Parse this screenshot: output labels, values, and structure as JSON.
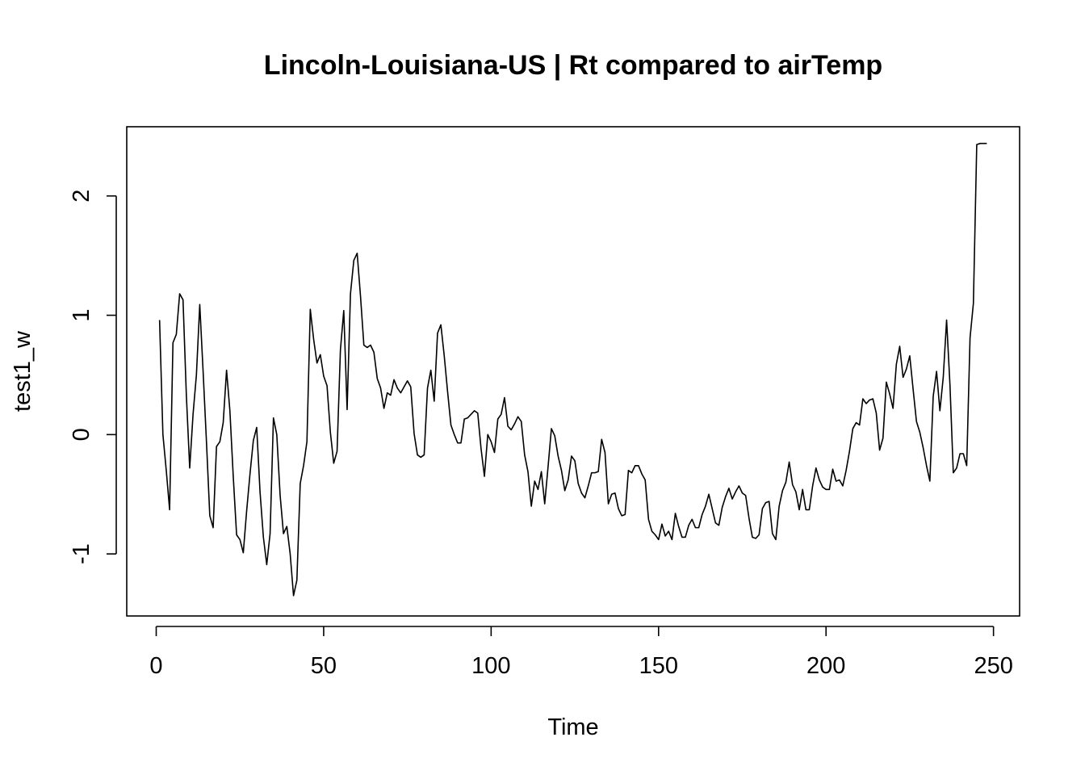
{
  "chart_data": {
    "type": "line",
    "title": "Lincoln-Louisiana-US | Rt compared to airTemp",
    "xlabel": "Time",
    "ylabel": "test1_w",
    "xlim": [
      -8.8,
      257.8
    ],
    "ylim": [
      -1.52,
      2.58
    ],
    "xticks": [
      0,
      50,
      100,
      150,
      200,
      250
    ],
    "xtick_labels": [
      "0",
      "50",
      "100",
      "150",
      "200",
      "250"
    ],
    "yticks": [
      -1,
      0,
      1,
      2
    ],
    "ytick_labels": [
      "-1",
      "0",
      "1",
      "2"
    ],
    "grid": false,
    "color": "#000000",
    "x": [
      1,
      2,
      3,
      4,
      5,
      6,
      7,
      8,
      9,
      10,
      11,
      12,
      13,
      14,
      15,
      16,
      17,
      18,
      19,
      20,
      21,
      22,
      23,
      24,
      25,
      26,
      27,
      28,
      29,
      30,
      31,
      32,
      33,
      34,
      35,
      36,
      37,
      38,
      39,
      40,
      41,
      42,
      43,
      44,
      45,
      46,
      47,
      48,
      49,
      50,
      51,
      52,
      53,
      54,
      55,
      56,
      57,
      58,
      59,
      60,
      61,
      62,
      63,
      64,
      65,
      66,
      67,
      68,
      69,
      70,
      71,
      72,
      73,
      74,
      75,
      76,
      77,
      78,
      79,
      80,
      81,
      82,
      83,
      84,
      85,
      86,
      87,
      88,
      89,
      90,
      91,
      92,
      93,
      94,
      95,
      96,
      97,
      98,
      99,
      100,
      101,
      102,
      103,
      104,
      105,
      106,
      107,
      108,
      109,
      110,
      111,
      112,
      113,
      114,
      115,
      116,
      117,
      118,
      119,
      120,
      121,
      122,
      123,
      124,
      125,
      126,
      127,
      128,
      129,
      130,
      131,
      132,
      133,
      134,
      135,
      136,
      137,
      138,
      139,
      140,
      141,
      142,
      143,
      144,
      145,
      146,
      147,
      148,
      149,
      150,
      151,
      152,
      153,
      154,
      155,
      156,
      157,
      158,
      159,
      160,
      161,
      162,
      163,
      164,
      165,
      166,
      167,
      168,
      169,
      170,
      171,
      172,
      173,
      174,
      175,
      176,
      177,
      178,
      179,
      180,
      181,
      182,
      183,
      184,
      185,
      186,
      187,
      188,
      189,
      190,
      191,
      192,
      193,
      194,
      195,
      196,
      197,
      198,
      199,
      200,
      201,
      202,
      203,
      204,
      205,
      206,
      207,
      208,
      209,
      210,
      211,
      212,
      213,
      214,
      215,
      216,
      217,
      218,
      219,
      220,
      221,
      222,
      223,
      224,
      225,
      226,
      227,
      228,
      229,
      230,
      231,
      232,
      233,
      234,
      235,
      236,
      237,
      238,
      239,
      240,
      241,
      242,
      243,
      244,
      245,
      246,
      247,
      248
    ],
    "y": [
      0.96,
      0.0,
      -0.3,
      -0.63,
      0.77,
      0.84,
      1.18,
      1.13,
      0.33,
      -0.28,
      0.17,
      0.5,
      1.09,
      0.53,
      -0.06,
      -0.68,
      -0.78,
      -0.1,
      -0.06,
      0.1,
      0.54,
      0.2,
      -0.35,
      -0.84,
      -0.88,
      -0.99,
      -0.64,
      -0.33,
      -0.05,
      0.06,
      -0.48,
      -0.86,
      -1.09,
      -0.83,
      0.14,
      0.0,
      -0.51,
      -0.83,
      -0.77,
      -1.0,
      -1.35,
      -1.22,
      -0.41,
      -0.26,
      -0.06,
      1.05,
      0.8,
      0.6,
      0.67,
      0.49,
      0.41,
      0.02,
      -0.24,
      -0.14,
      0.71,
      1.04,
      0.21,
      1.18,
      1.46,
      1.52,
      1.16,
      0.75,
      0.73,
      0.75,
      0.69,
      0.47,
      0.39,
      0.22,
      0.35,
      0.33,
      0.46,
      0.39,
      0.35,
      0.4,
      0.45,
      0.4,
      0.01,
      -0.17,
      -0.19,
      -0.17,
      0.39,
      0.54,
      0.28,
      0.85,
      0.92,
      0.66,
      0.36,
      0.08,
      0.0,
      -0.07,
      -0.07,
      0.13,
      0.14,
      0.17,
      0.2,
      0.18,
      -0.12,
      -0.35,
      0.0,
      -0.06,
      -0.15,
      0.13,
      0.17,
      0.31,
      0.07,
      0.04,
      0.09,
      0.15,
      0.11,
      -0.17,
      -0.31,
      -0.6,
      -0.39,
      -0.46,
      -0.31,
      -0.58,
      -0.27,
      0.05,
      -0.01,
      -0.18,
      -0.3,
      -0.47,
      -0.38,
      -0.18,
      -0.22,
      -0.41,
      -0.49,
      -0.53,
      -0.43,
      -0.32,
      -0.32,
      -0.31,
      -0.04,
      -0.15,
      -0.58,
      -0.5,
      -0.49,
      -0.62,
      -0.68,
      -0.67,
      -0.3,
      -0.32,
      -0.26,
      -0.26,
      -0.33,
      -0.38,
      -0.71,
      -0.81,
      -0.84,
      -0.88,
      -0.75,
      -0.85,
      -0.81,
      -0.88,
      -0.66,
      -0.77,
      -0.86,
      -0.86,
      -0.76,
      -0.71,
      -0.78,
      -0.78,
      -0.67,
      -0.6,
      -0.5,
      -0.62,
      -0.74,
      -0.76,
      -0.61,
      -0.52,
      -0.45,
      -0.54,
      -0.48,
      -0.43,
      -0.49,
      -0.51,
      -0.7,
      -0.86,
      -0.87,
      -0.84,
      -0.62,
      -0.57,
      -0.56,
      -0.83,
      -0.88,
      -0.6,
      -0.47,
      -0.4,
      -0.23,
      -0.42,
      -0.48,
      -0.63,
      -0.46,
      -0.63,
      -0.63,
      -0.43,
      -0.28,
      -0.38,
      -0.44,
      -0.46,
      -0.46,
      -0.29,
      -0.39,
      -0.38,
      -0.43,
      -0.3,
      -0.14,
      0.05,
      0.1,
      0.08,
      0.3,
      0.26,
      0.29,
      0.3,
      0.18,
      -0.13,
      -0.03,
      0.44,
      0.34,
      0.22,
      0.59,
      0.74,
      0.48,
      0.55,
      0.66,
      0.38,
      0.11,
      0.02,
      -0.11,
      -0.26,
      -0.39,
      0.32,
      0.53,
      0.2,
      0.48,
      0.96,
      0.42,
      -0.32,
      -0.28,
      -0.16,
      -0.16,
      -0.26,
      0.81,
      1.1,
      2.43,
      2.44,
      2.44,
      2.44
    ]
  }
}
